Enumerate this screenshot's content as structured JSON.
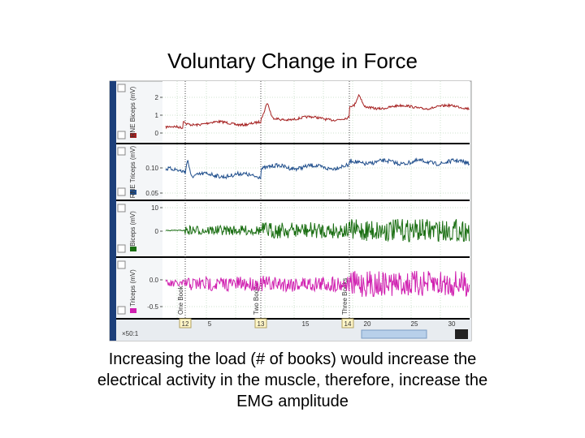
{
  "title": "Voluntary Change in Force",
  "caption": [
    "Increasing the load (# of books) would increase the",
    "electrical activity in the muscle, therefore, increase the",
    "EMG amplitude"
  ],
  "screenshot": {
    "panels": [
      {
        "label": "RNE Biceps (mV)",
        "ticks": [
          "2",
          "1",
          "0"
        ]
      },
      {
        "label": "RNE Triceps (mV)",
        "ticks": [
          "0.10",
          "0.05"
        ]
      },
      {
        "label": "Biceps (mV)",
        "ticks": [
          "10",
          "0"
        ]
      },
      {
        "label": "Triceps (mV)",
        "ticks": [
          "0.0",
          "-0.5"
        ]
      }
    ],
    "markers": [
      "One Book",
      "Two Books",
      "Three Books"
    ],
    "xticks": [
      "12",
      "5",
      "13",
      "15",
      "14",
      "20",
      "25",
      "30"
    ],
    "zoom": "×50:1"
  }
}
